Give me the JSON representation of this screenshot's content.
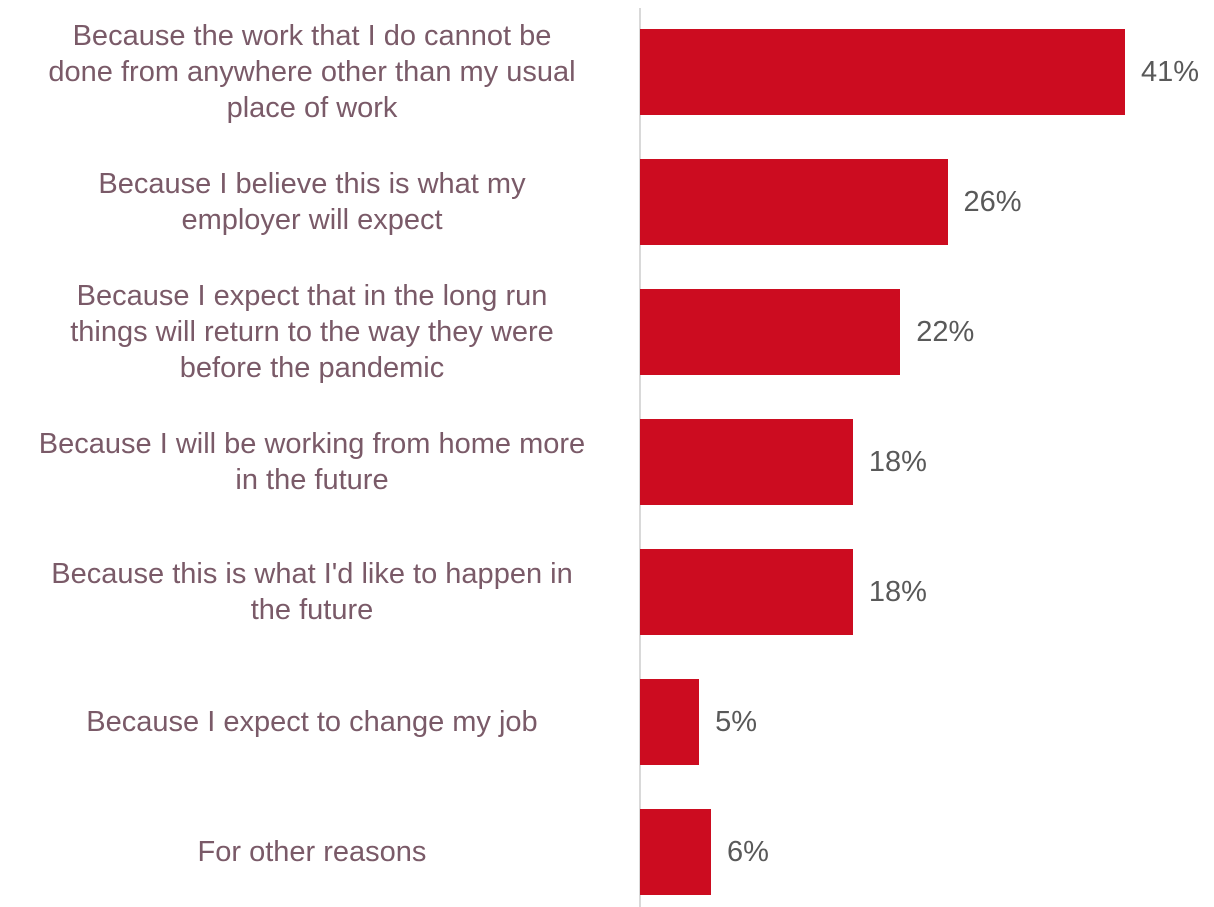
{
  "chart_data": {
    "type": "bar",
    "orientation": "horizontal",
    "categories": [
      "Because the work that I do cannot be done from anywhere other than my usual place of work",
      "Because I believe this is what my employer will expect",
      "Because I expect that in the long run things will return to the way they were before the pandemic",
      "Because I will be working from home more in the future",
      "Because this is what I'd like to happen in the future",
      "Because I expect to change my job",
      "For other reasons"
    ],
    "category_lines": [
      [
        "Because the work that I do cannot be",
        "done from anywhere other than my usual",
        "place of work"
      ],
      [
        "Because I believe this is what my",
        "employer will expect"
      ],
      [
        "Because I expect that in the long run",
        "things will return to the way they were",
        "before the pandemic"
      ],
      [
        "Because I will be working from home more",
        "in the future"
      ],
      [
        "Because this is what I'd like to happen in",
        "the future"
      ],
      [
        "Because I expect to change my job"
      ],
      [
        "For other reasons"
      ]
    ],
    "values": [
      41,
      26,
      22,
      18,
      18,
      5,
      6
    ],
    "data_labels": [
      "41%",
      "26%",
      "22%",
      "18%",
      "18%",
      "5%",
      "6%"
    ],
    "unit": "%",
    "xlim": [
      0,
      41
    ],
    "grid": false,
    "legend": "none",
    "colors": {
      "bar": "#cc0c20",
      "category_text": "#7a5a68",
      "value_text": "#595959",
      "axis": "#d9d9d9"
    }
  }
}
